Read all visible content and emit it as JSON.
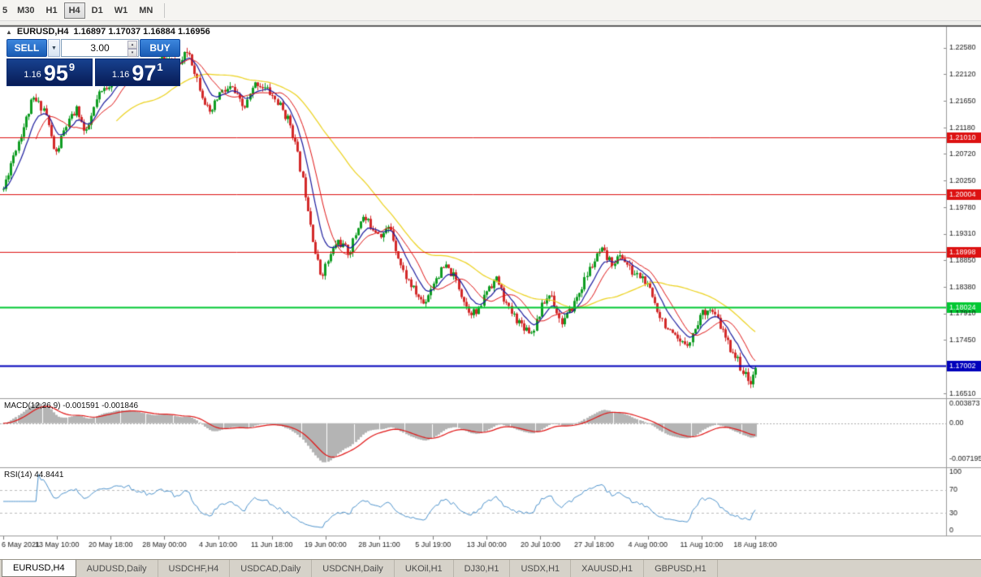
{
  "toolbar": {
    "items": [
      "5",
      "M30",
      "H1",
      "H4",
      "D1",
      "W1",
      "MN"
    ],
    "active": "H4"
  },
  "icons": {
    "collapse": "▲",
    "dropdown": "▼",
    "spin_up": "▴",
    "spin_down": "▾"
  },
  "header": {
    "title": "EURUSD,H4",
    "ohlc": "1.16897 1.17037 1.16884 1.16956"
  },
  "one_click": {
    "sell_label": "SELL",
    "buy_label": "BUY",
    "volume": "3.00",
    "bid": {
      "prefix": "1.16",
      "big": "95",
      "sup": "9"
    },
    "ask": {
      "prefix": "1.16",
      "big": "97",
      "sup": "1"
    }
  },
  "indicators": {
    "macd_label": "MACD(12,26,9) -0.001591 -0.001846",
    "rsi_label": "RSI(14) 44.8441"
  },
  "tabs": {
    "items": [
      {
        "label": "EURUSD,H4",
        "active": true
      },
      {
        "label": "AUDUSD,Daily",
        "active": false
      },
      {
        "label": "USDCHF,H4",
        "active": false
      },
      {
        "label": "USDCAD,Daily",
        "active": false
      },
      {
        "label": "USDCNH,Daily",
        "active": false
      },
      {
        "label": "UKOil,H1",
        "active": false
      },
      {
        "label": "DJ30,H1",
        "active": false
      },
      {
        "label": "USDX,H1",
        "active": false
      },
      {
        "label": "XAUUSD,H1",
        "active": false
      },
      {
        "label": "GBPUSD,H1",
        "active": false
      }
    ]
  },
  "chart_data": {
    "type": "candlestick",
    "symbol": "EURUSD",
    "timeframe": "H4",
    "last_ohlc": {
      "open": 1.16897,
      "high": 1.17037,
      "low": 1.16884,
      "close": 1.16956
    },
    "bid": 1.16959,
    "ask": 1.16971,
    "num_candles": 300,
    "seed": 11,
    "candle_colors": {
      "up": "#0f9d22",
      "down": "#d32a2a"
    },
    "ma_colors": {
      "yellow": "#ecd21d",
      "blue": "#1c1c9e",
      "red": "#e01515"
    },
    "moving_averages": [
      {
        "name": "slow",
        "method": "sma",
        "period": 46,
        "color_key": "yellow"
      },
      {
        "name": "fast-ema",
        "method": "ema",
        "period": 9,
        "color_key": "blue"
      },
      {
        "name": "fast-sma",
        "method": "sma",
        "period": 14,
        "color_key": "red"
      }
    ],
    "price_axis": {
      "labels": [
        "1.22580",
        "1.22120",
        "1.21650",
        "1.21180",
        "1.20720",
        "1.20250",
        "1.19780",
        "1.19310",
        "1.18850",
        "1.18380",
        "1.17910",
        "1.17450",
        "1.16510"
      ]
    },
    "levels": [
      {
        "price": 1.2101,
        "label": "1.21010",
        "color": "#dd1111",
        "width": 1
      },
      {
        "price": 1.20004,
        "label": "1.20004",
        "color": "#dd1111",
        "width": 1
      },
      {
        "price": 1.18998,
        "label": "1.18998",
        "color": "#dd1111",
        "width": 1
      },
      {
        "price": 1.18024,
        "label": "1.18024",
        "color": "#00c832",
        "width": 2
      },
      {
        "price": 1.17002,
        "label": "1.17002",
        "color": "#0000bb",
        "width": 2
      }
    ],
    "price_path": [
      [
        0.0,
        1.201
      ],
      [
        0.0119,
        1.2065
      ],
      [
        0.0281,
        1.2125
      ],
      [
        0.0389,
        1.2168
      ],
      [
        0.0551,
        1.215
      ],
      [
        0.0691,
        1.2068
      ],
      [
        0.0821,
        1.2118
      ],
      [
        0.0983,
        1.2152
      ],
      [
        0.1091,
        1.2102
      ],
      [
        0.1253,
        1.2172
      ],
      [
        0.1469,
        1.2205
      ],
      [
        0.1685,
        1.2222
      ],
      [
        0.1901,
        1.2212
      ],
      [
        0.2117,
        1.224
      ],
      [
        0.2333,
        1.2228
      ],
      [
        0.2462,
        1.2254
      ],
      [
        0.2603,
        1.2192
      ],
      [
        0.2743,
        1.2138
      ],
      [
        0.2873,
        1.2178
      ],
      [
        0.3035,
        1.2188
      ],
      [
        0.3197,
        1.215
      ],
      [
        0.3359,
        1.2198
      ],
      [
        0.3521,
        1.2183
      ],
      [
        0.3682,
        1.2155
      ],
      [
        0.3823,
        1.2122
      ],
      [
        0.3931,
        1.2058
      ],
      [
        0.4039,
        1.1985
      ],
      [
        0.4147,
        1.1898
      ],
      [
        0.4222,
        1.1858
      ],
      [
        0.433,
        1.1888
      ],
      [
        0.4438,
        1.192
      ],
      [
        0.46,
        1.1898
      ],
      [
        0.4762,
        1.1962
      ],
      [
        0.487,
        1.1948
      ],
      [
        0.5032,
        1.193
      ],
      [
        0.514,
        1.1944
      ],
      [
        0.5302,
        1.1868
      ],
      [
        0.5464,
        1.183
      ],
      [
        0.5594,
        1.1808
      ],
      [
        0.5734,
        1.1852
      ],
      [
        0.5875,
        1.1874
      ],
      [
        0.6004,
        1.1854
      ],
      [
        0.6166,
        1.18
      ],
      [
        0.6307,
        1.179
      ],
      [
        0.6436,
        1.1838
      ],
      [
        0.6566,
        1.1852
      ],
      [
        0.6706,
        1.18
      ],
      [
        0.6868,
        1.1775
      ],
      [
        0.703,
        1.1758
      ],
      [
        0.7171,
        1.1808
      ],
      [
        0.7279,
        1.1828
      ],
      [
        0.7409,
        1.1775
      ],
      [
        0.7516,
        1.179
      ],
      [
        0.7646,
        1.1825
      ],
      [
        0.7786,
        1.1868
      ],
      [
        0.7948,
        1.1902
      ],
      [
        0.8078,
        1.188
      ],
      [
        0.8218,
        1.1893
      ],
      [
        0.8359,
        1.1863
      ],
      [
        0.8488,
        1.1855
      ],
      [
        0.8596,
        1.183
      ],
      [
        0.8726,
        1.179
      ],
      [
        0.8866,
        1.1755
      ],
      [
        0.9006,
        1.1736
      ],
      [
        0.9136,
        1.1745
      ],
      [
        0.9266,
        1.1788
      ],
      [
        0.9374,
        1.1802
      ],
      [
        0.9503,
        1.1778
      ],
      [
        0.9622,
        1.174
      ],
      [
        0.973,
        1.1718
      ],
      [
        0.9838,
        1.1688
      ],
      [
        0.9914,
        1.1668
      ],
      [
        1.0,
        1.1696
      ]
    ],
    "macd_panel": {
      "params": "12,26,9",
      "value_main": -0.001591,
      "value_signal": -0.001846,
      "scale_labels": [
        "0.003873",
        "0.00",
        "-0.007195"
      ],
      "scale_values": [
        0.003873,
        0,
        -0.007195
      ],
      "histogram_color": "#b4b4b4",
      "signal_color": "#e01515"
    },
    "rsi_panel": {
      "period": 14,
      "value": 44.8441,
      "scale_labels": [
        "100",
        "70",
        "30",
        "0"
      ],
      "scale_values": [
        100,
        70,
        30,
        0
      ],
      "level_lines": [
        70,
        30
      ],
      "line_color": "#4f94cd"
    },
    "time_axis": {
      "labels": [
        "6 May 2021",
        "13 May 10:00",
        "20 May 18:00",
        "28 May 00:00",
        "4 Jun 10:00",
        "11 Jun 18:00",
        "19 Jun 00:00",
        "28 Jun 11:00",
        "5 Jul 19:00",
        "13 Jul 00:00",
        "20 Jul 10:00",
        "27 Jul 18:00",
        "4 Aug 00:00",
        "11 Aug 10:00",
        "18 Aug 18:00"
      ]
    }
  }
}
